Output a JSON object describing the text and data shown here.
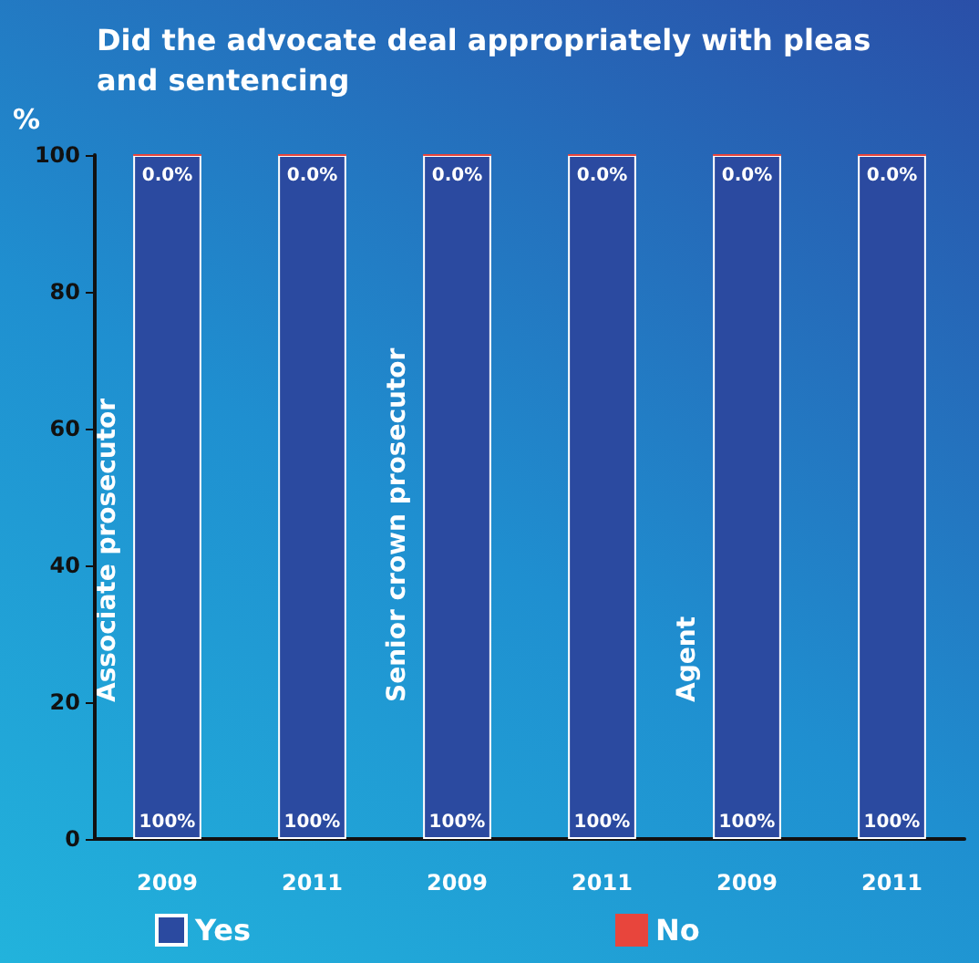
{
  "chart_data": {
    "type": "bar",
    "title": "Did the advocate deal appropriately with pleas and sentencing",
    "ylabel": "%",
    "categories": [
      "2009",
      "2011",
      "2009",
      "2011",
      "2009",
      "2011"
    ],
    "stacked": true,
    "series": [
      {
        "name": "Yes",
        "color": "#2b4aa0",
        "values": [
          100,
          100,
          100,
          100,
          100,
          100
        ],
        "value_labels": [
          "100%",
          "100%",
          "100%",
          "100%",
          "100%",
          "100%"
        ]
      },
      {
        "name": "No",
        "color": "#e8453c",
        "values": [
          0,
          0,
          0,
          0,
          0,
          0
        ],
        "value_labels": [
          "0.0%",
          "0.0%",
          "0.0%",
          "0.0%",
          "0.0%",
          "0.0%"
        ]
      }
    ],
    "ylim": [
      0,
      100
    ],
    "yticks": [
      0,
      20,
      40,
      60,
      80,
      100
    ],
    "grid": false,
    "legend": "bottom",
    "annotations": [
      "Associate prosecutor",
      "Senior crown prosecutor",
      "Agent"
    ]
  }
}
